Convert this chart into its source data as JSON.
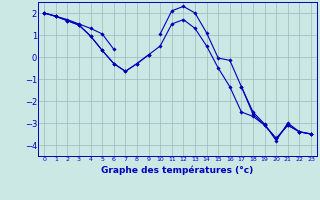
{
  "xlabel": "Graphe des températures (°c)",
  "background_color": "#cce8e5",
  "grid_color": "#99bbba",
  "line_color": "#0000bb",
  "x": [
    0,
    1,
    2,
    3,
    4,
    5,
    6,
    7,
    8,
    9,
    10,
    11,
    12,
    13,
    14,
    15,
    16,
    17,
    18,
    19,
    20,
    21,
    22,
    23
  ],
  "series1": [
    2.0,
    1.85,
    1.7,
    1.5,
    1.3,
    1.05,
    0.35,
    null,
    null,
    null,
    1.05,
    2.1,
    2.3,
    2.0,
    1.1,
    -0.05,
    -0.15,
    -1.35,
    -2.5,
    -3.05,
    -3.8,
    -3.0,
    -3.4,
    -3.5
  ],
  "series2": [
    2.0,
    1.85,
    1.65,
    1.45,
    0.95,
    0.3,
    -0.3,
    -0.65,
    -0.3,
    0.1,
    null,
    null,
    null,
    null,
    null,
    null,
    null,
    -1.35,
    -2.6,
    -3.1,
    -3.7,
    -3.1,
    -3.4,
    -3.5
  ],
  "series3": [
    2.0,
    1.85,
    1.65,
    1.45,
    0.95,
    0.3,
    -0.3,
    -0.65,
    -0.3,
    0.1,
    0.5,
    1.5,
    1.7,
    1.3,
    0.5,
    -0.5,
    -1.35,
    -2.5,
    -2.7,
    -3.1,
    -3.7,
    -3.1,
    -3.4,
    -3.5
  ],
  "ylim": [
    -4.5,
    2.5
  ],
  "xlim": [
    -0.5,
    23.5
  ],
  "yticks": [
    2,
    1,
    0,
    -1,
    -2,
    -3,
    -4
  ],
  "xticks": [
    0,
    1,
    2,
    3,
    4,
    5,
    6,
    7,
    8,
    9,
    10,
    11,
    12,
    13,
    14,
    15,
    16,
    17,
    18,
    19,
    20,
    21,
    22,
    23
  ],
  "xlabel_fontsize": 6.5,
  "xtick_fontsize": 4.5,
  "ytick_fontsize": 6.0
}
